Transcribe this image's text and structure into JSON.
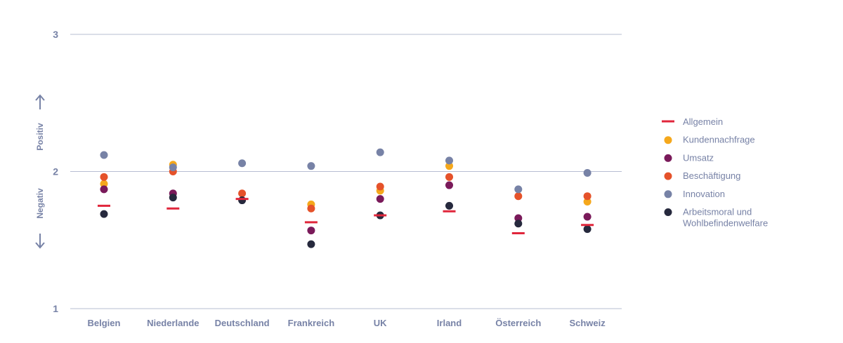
{
  "chart_data": {
    "type": "scatter",
    "categories": [
      "Belgien",
      "Niederlande",
      "Deutschland",
      "Frankreich",
      "UK",
      "Irland",
      "Österreich",
      "Schweiz"
    ],
    "ylim": [
      1,
      3
    ],
    "yticks": [
      "1",
      "2",
      "3"
    ],
    "grid": true,
    "legend_position": "right",
    "side_labels": {
      "positive": "Positiv",
      "negative": "Negativ"
    },
    "series": [
      {
        "name": "Allgemein",
        "marker": "dash",
        "color": "#e0263b",
        "values": [
          1.75,
          1.73,
          1.8,
          1.63,
          1.68,
          1.71,
          1.55,
          1.61
        ]
      },
      {
        "name": "Kundennachfrage",
        "marker": "dot",
        "color": "#f5a81c",
        "values": [
          1.91,
          2.05,
          null,
          1.76,
          1.86,
          2.04,
          null,
          1.78
        ]
      },
      {
        "name": "Umsatz",
        "marker": "dot",
        "color": "#7a1a5a",
        "values": [
          1.87,
          1.84,
          null,
          1.57,
          1.8,
          1.9,
          1.66,
          1.67
        ]
      },
      {
        "name": "Beschäftigung",
        "marker": "dot",
        "color": "#e5522a",
        "values": [
          1.96,
          2.0,
          1.84,
          1.73,
          1.89,
          1.96,
          1.82,
          1.82
        ]
      },
      {
        "name": "Innovation",
        "marker": "dot",
        "color": "#7782a6",
        "values": [
          2.12,
          2.03,
          2.06,
          2.04,
          2.14,
          2.08,
          1.87,
          1.99
        ]
      },
      {
        "name": "Arbeitsmoral und Wohlbefindenwelfare",
        "legend_lines": [
          "Arbeitsmoral und",
          "Wohlbefindenwelfare"
        ],
        "marker": "dot",
        "color": "#26293d",
        "values": [
          1.69,
          1.81,
          1.79,
          1.47,
          1.68,
          1.75,
          1.62,
          1.58
        ]
      }
    ]
  }
}
